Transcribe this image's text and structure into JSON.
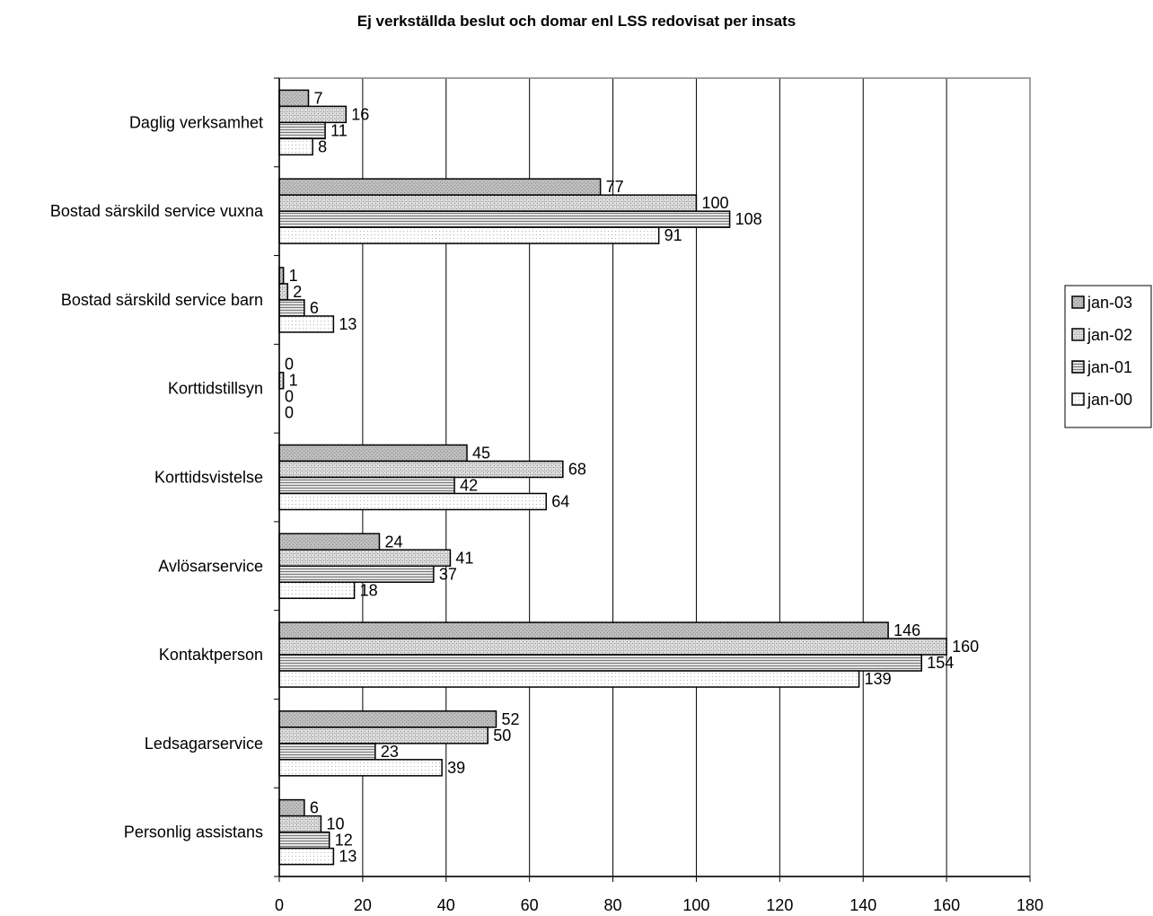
{
  "chart_data": {
    "type": "bar",
    "orientation": "horizontal",
    "title": "Ej verkställda beslut och domar enl LSS redovisat per insats",
    "xlabel": "",
    "ylabel": "",
    "xlim": [
      0,
      180
    ],
    "xticks": [
      0,
      20,
      40,
      60,
      80,
      100,
      120,
      140,
      160,
      180
    ],
    "grid": true,
    "legend_position": "right",
    "categories": [
      "Daglig verksamhet",
      "Bostad särskild service vuxna",
      "Bostad särskild service barn",
      "Korttidstillsyn",
      "Korttidsvistelse",
      "Avlösarservice",
      "Kontaktperson",
      "Ledsagarservice",
      "Personlig assistans"
    ],
    "series": [
      {
        "name": "jan-03",
        "color": "#c0c0c0",
        "values": [
          7,
          77,
          1,
          0,
          45,
          24,
          146,
          52,
          6
        ]
      },
      {
        "name": "jan-02",
        "color": "#d4d4d4",
        "values": [
          16,
          100,
          2,
          1,
          68,
          41,
          160,
          50,
          10
        ]
      },
      {
        "name": "jan-01",
        "color": "#c8c8c8",
        "values": [
          11,
          108,
          6,
          0,
          42,
          37,
          154,
          23,
          12
        ]
      },
      {
        "name": "jan-00",
        "color": "#ffffff",
        "values": [
          8,
          91,
          13,
          0,
          64,
          18,
          139,
          39,
          13
        ]
      }
    ]
  }
}
